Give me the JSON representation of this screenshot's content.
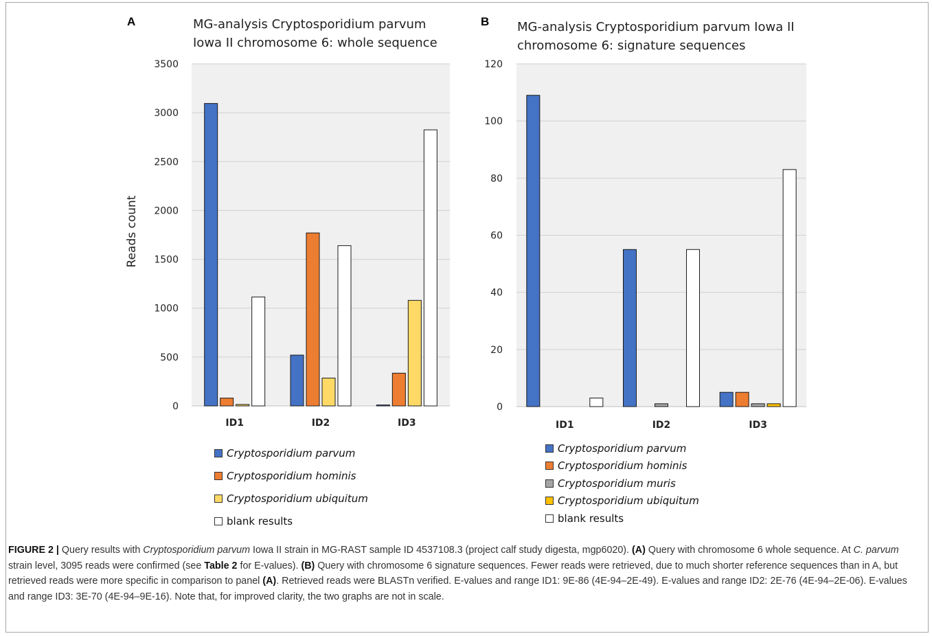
{
  "panels": [
    {
      "letter": "A",
      "title_line1": "MG-analysis Cryptosporidium parvum",
      "title_line2": "Iowa II chromosome 6: whole sequence"
    },
    {
      "letter": "B",
      "title_line1": "MG-analysis Cryptosporidium parvum Iowa II",
      "title_line2": "chromosome 6: signature sequences"
    }
  ],
  "colors": {
    "parvum": "#4472c4",
    "hominis": "#ed7d31",
    "muris": "#a5a5a5",
    "ubiquitum_a": "#ffd966",
    "ubiquitum_b": "#ffc000",
    "blank": "#ffffff",
    "plot_bg": "#f0f0f0"
  },
  "chart_data": [
    {
      "type": "bar",
      "title": "MG-analysis Cryptosporidium parvum Iowa II chromosome 6: whole sequence",
      "xlabel": "",
      "ylabel": "Reads count",
      "ylim": [
        0,
        3500
      ],
      "yticks": [
        "0",
        "500",
        "1000",
        "1500",
        "2000",
        "2500",
        "3000",
        "3500"
      ],
      "categories": [
        "ID1",
        "ID2",
        "ID3"
      ],
      "grid": true,
      "legend_position": "bottom",
      "series": [
        {
          "name": "Cryptosporidium parvum",
          "color_key": "parvum",
          "values": [
            3095,
            520,
            10
          ]
        },
        {
          "name": "Cryptosporidium hominis",
          "color_key": "hominis",
          "values": [
            80,
            1770,
            335
          ]
        },
        {
          "name": "Cryptosporidium ubiquitum",
          "color_key": "ubiquitum_a",
          "values": [
            15,
            285,
            1080
          ]
        },
        {
          "name": "blank results",
          "color_key": "blank",
          "values": [
            1115,
            1640,
            2825
          ]
        }
      ]
    },
    {
      "type": "bar",
      "title": "MG-analysis Cryptosporidium parvum Iowa II chromosome 6: signature sequences",
      "xlabel": "",
      "ylabel": "",
      "ylim": [
        0,
        120
      ],
      "yticks": [
        "0",
        "20",
        "40",
        "60",
        "80",
        "100",
        "120"
      ],
      "categories": [
        "ID1",
        "ID2",
        "ID3"
      ],
      "grid": true,
      "legend_position": "bottom",
      "series": [
        {
          "name": "Cryptosporidium parvum",
          "color_key": "parvum",
          "values": [
            109,
            55,
            5
          ]
        },
        {
          "name": "Cryptosporidium hominis",
          "color_key": "hominis",
          "values": [
            0,
            0,
            5
          ]
        },
        {
          "name": "Cryptosporidium muris",
          "color_key": "muris",
          "values": [
            0,
            1,
            1
          ]
        },
        {
          "name": "Cryptosporidium ubiquitum",
          "color_key": "ubiquitum_b",
          "values": [
            0,
            0,
            1
          ]
        },
        {
          "name": "blank results",
          "color_key": "blank",
          "values": [
            3,
            55,
            83
          ]
        }
      ]
    }
  ],
  "legend_a": [
    {
      "label": "Cryptosporidium parvum",
      "italic": true,
      "color_key": "parvum"
    },
    {
      "label": "Cryptosporidium hominis",
      "italic": true,
      "color_key": "hominis"
    },
    {
      "label": "Cryptosporidium ubiquitum",
      "italic": true,
      "color_key": "ubiquitum_a"
    },
    {
      "label": "blank results",
      "italic": false,
      "color_key": "blank"
    }
  ],
  "legend_b": [
    {
      "label": "Cryptosporidium parvum",
      "italic": true,
      "color_key": "parvum"
    },
    {
      "label": "Cryptosporidium hominis",
      "italic": true,
      "color_key": "hominis"
    },
    {
      "label": "Cryptosporidium muris",
      "italic": true,
      "color_key": "muris"
    },
    {
      "label": "Cryptosporidium ubiquitum",
      "italic": true,
      "color_key": "ubiquitum_b"
    },
    {
      "label": "blank results",
      "italic": false,
      "color_key": "blank"
    }
  ],
  "caption": {
    "fig_label": "FIGURE 2 |",
    "t1": " Query results with ",
    "t1_italic": "Cryptosporidium parvum",
    "t2": " Iowa II strain in MG-RAST sample ID 4537108.3 (project calf study digesta, mgp6020). ",
    "ref_a": "(A)",
    "t3": " Query with chromosome 6 whole sequence. At ",
    "t3_italic": "C. parvum",
    "t4": " strain level, 3095 reads were confirmed (see ",
    "table_ref": "Table 2",
    "t5": " for E-values). ",
    "ref_b": "(B)",
    "t6": " Query with chromosome 6 signature sequences. Fewer reads were retrieved, due to much shorter reference sequences than in A, but retrieved reads were more specific in comparison to panel ",
    "ref_a2": "(A)",
    "t7": ". Retrieved reads were BLASTn verified. E-values and range ID1: 9E-86 (4E-94–2E-49). E-values and range ID2: 2E-76 (4E-94–2E-06). E-values and range ID3: 3E-70 (4E-94–9E-16). Note that, for improved clarity, the two graphs are not in scale."
  }
}
